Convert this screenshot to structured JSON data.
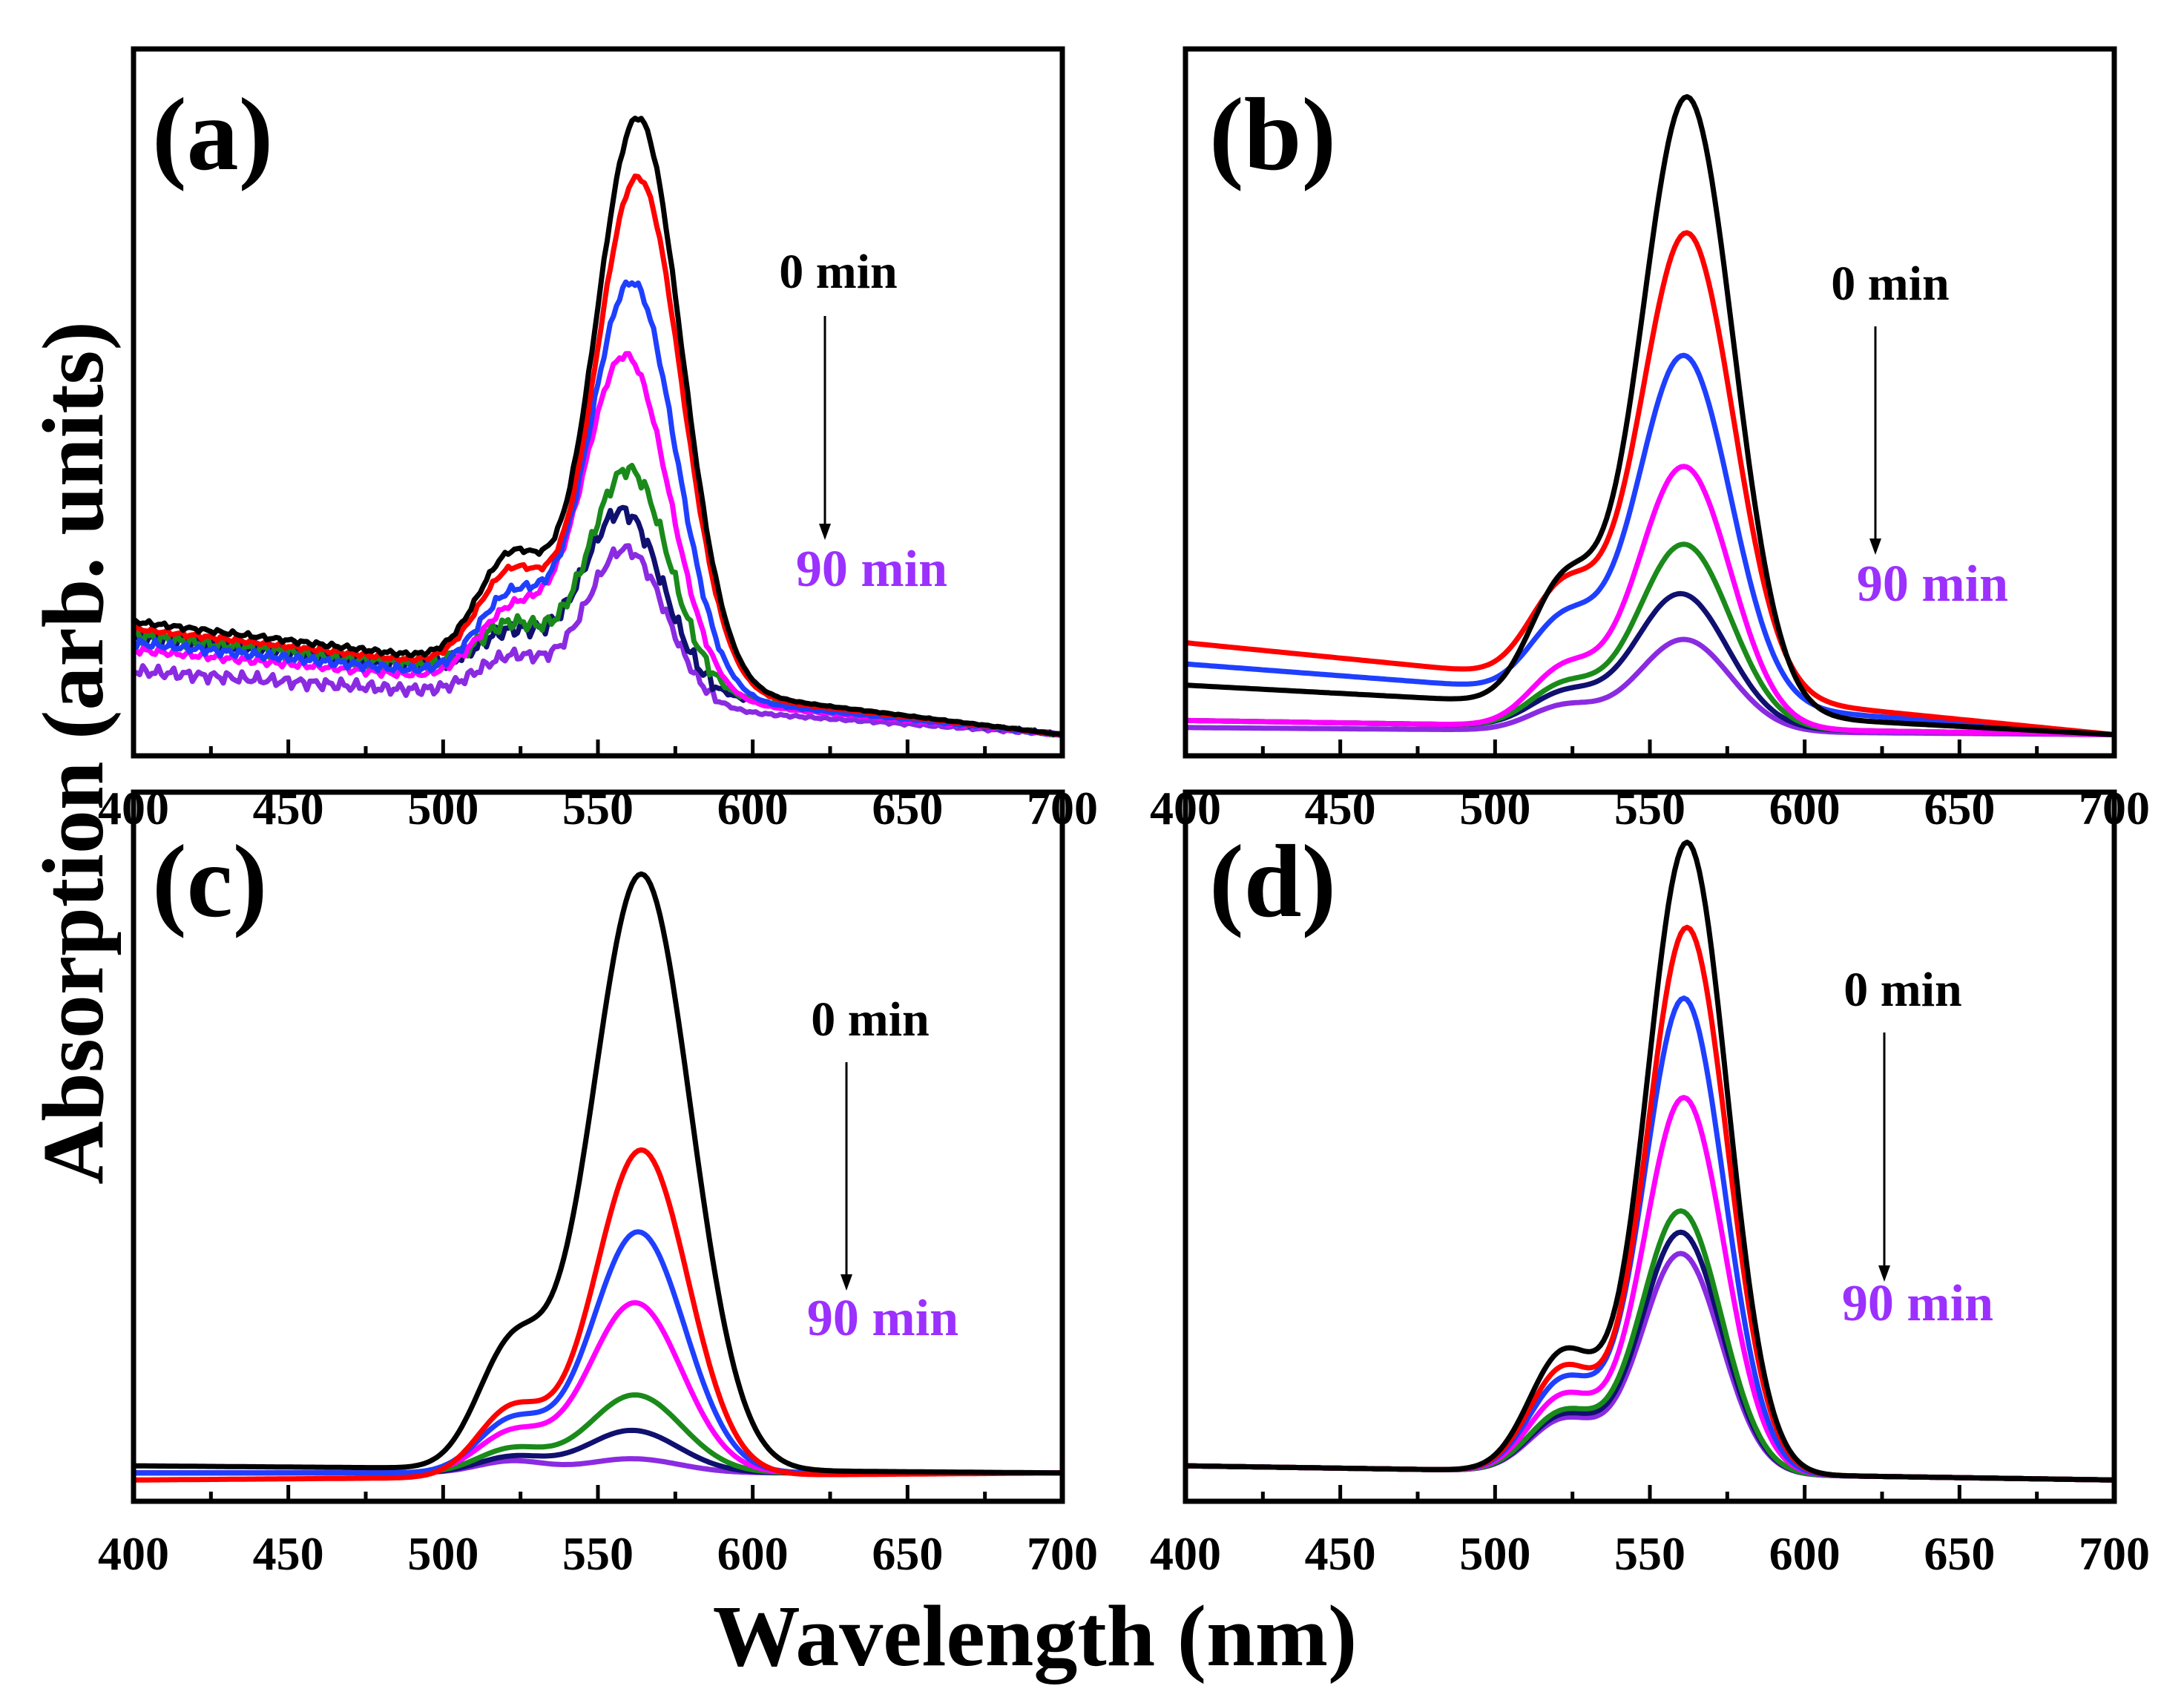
{
  "figure": {
    "ylabel": "Absorption (arb. units)",
    "xlabel": "Wavelength (nm)"
  },
  "chart_data": [
    {
      "type": "line",
      "panel": "(a)",
      "annotation_start": "0 min",
      "annotation_end": "90 min",
      "xlim": [
        400,
        700
      ],
      "ylim": [
        0,
        100
      ],
      "xticks": [
        400,
        450,
        500,
        550,
        600,
        650,
        700
      ],
      "xlabel": "Wavelength (nm)",
      "ylabel": "Absorption (arb. units)",
      "series": [
        {
          "color": "#000000",
          "peak": 83,
          "peak_x": 563,
          "width": 14,
          "shoulder": 28,
          "base_left": 19,
          "base_right": 3,
          "noise": 0.4
        },
        {
          "color": "#ff0000",
          "peak": 75,
          "peak_x": 563,
          "width": 14,
          "shoulder": 25,
          "base_left": 18,
          "base_right": 3,
          "noise": 0.4
        },
        {
          "color": "#1f3fff",
          "peak": 61,
          "peak_x": 561,
          "width": 14,
          "shoulder": 21,
          "base_left": 16,
          "base_right": 3,
          "noise": 0.7
        },
        {
          "color": "#ff00ff",
          "peak": 51,
          "peak_x": 559,
          "width": 14,
          "shoulder": 18,
          "base_left": 15,
          "base_right": 3,
          "noise": 0.6
        },
        {
          "color": "#1a8a1a",
          "peak": 34,
          "peak_x": 560,
          "width": 13,
          "shoulder": 13,
          "base_left": 17,
          "base_right": 3,
          "noise": 1.2
        },
        {
          "color": "#101070",
          "peak": 28,
          "peak_x": 558,
          "width": 13,
          "shoulder": 11,
          "base_left": 17,
          "base_right": 3,
          "noise": 1.3
        },
        {
          "color": "#8a2be2",
          "peak": 25,
          "peak_x": 559,
          "width": 13,
          "shoulder": 10,
          "base_left": 12,
          "base_right": 3,
          "noise": 1.0
        }
      ]
    },
    {
      "type": "line",
      "panel": "(b)",
      "annotation_start": "0 min",
      "annotation_end": "90 min",
      "xlim": [
        400,
        700
      ],
      "ylim": [
        0,
        100
      ],
      "xticks": [
        400,
        450,
        500,
        550,
        600,
        650,
        700
      ],
      "xlabel": "Wavelength (nm)",
      "ylabel": "Absorption (arb. units)",
      "series": [
        {
          "color": "#000000",
          "peak": 90,
          "peak_x": 562,
          "width": 15,
          "shoulder": 30,
          "base_left": 10,
          "base_right": 3,
          "noise": 0
        },
        {
          "color": "#ff0000",
          "peak": 68,
          "peak_x": 562,
          "width": 15,
          "shoulder": 23,
          "base_left": 16,
          "base_right": 3,
          "noise": 0
        },
        {
          "color": "#1f3fff",
          "peak": 52,
          "peak_x": 561,
          "width": 15,
          "shoulder": 18,
          "base_left": 13,
          "base_right": 3,
          "noise": 0
        },
        {
          "color": "#ff00ff",
          "peak": 40,
          "peak_x": 561,
          "width": 15,
          "shoulder": 14,
          "base_left": 5,
          "base_right": 3,
          "noise": 0
        },
        {
          "color": "#1a8a1a",
          "peak": 29,
          "peak_x": 561,
          "width": 15,
          "shoulder": 10,
          "base_left": 5,
          "base_right": 3,
          "noise": 0
        },
        {
          "color": "#101070",
          "peak": 22,
          "peak_x": 560,
          "width": 15,
          "shoulder": 8,
          "base_left": 5,
          "base_right": 3,
          "noise": 0
        },
        {
          "color": "#8a2be2",
          "peak": 16,
          "peak_x": 561,
          "width": 15,
          "shoulder": 6,
          "base_left": 4,
          "base_right": 3,
          "noise": 0
        }
      ]
    },
    {
      "type": "line",
      "panel": "(c)",
      "annotation_start": "0 min",
      "annotation_end": "90 min",
      "xlim": [
        400,
        700
      ],
      "ylim": [
        0,
        100
      ],
      "xticks": [
        400,
        450,
        500,
        550,
        600,
        650,
        700
      ],
      "xlabel": "Wavelength (nm)",
      "ylabel": "Absorption (arb. units)",
      "series": [
        {
          "color": "#000000",
          "peak": 88,
          "peak_x": 564,
          "width": 16,
          "shoulder": 30,
          "base_left": 5,
          "base_right": 4,
          "noise": 0
        },
        {
          "color": "#ff0000",
          "peak": 50,
          "peak_x": 564,
          "width": 15,
          "shoulder": 17,
          "base_left": 3,
          "base_right": 4,
          "noise": 0
        },
        {
          "color": "#1f3fff",
          "peak": 38,
          "peak_x": 563,
          "width": 15,
          "shoulder": 13,
          "base_left": 4,
          "base_right": 4,
          "noise": 0
        },
        {
          "color": "#ff00ff",
          "peak": 28,
          "peak_x": 562,
          "width": 15,
          "shoulder": 10,
          "base_left": 4,
          "base_right": 4,
          "noise": 0
        },
        {
          "color": "#1a8a1a",
          "peak": 15,
          "peak_x": 562,
          "width": 15,
          "shoulder": 6,
          "base_left": 4,
          "base_right": 4,
          "noise": 0
        },
        {
          "color": "#101070",
          "peak": 10,
          "peak_x": 561,
          "width": 15,
          "shoulder": 4,
          "base_left": 4,
          "base_right": 4,
          "noise": 0
        },
        {
          "color": "#8a2be2",
          "peak": 6,
          "peak_x": 561,
          "width": 15,
          "shoulder": 3,
          "base_left": 4,
          "base_right": 4,
          "noise": 0
        }
      ]
    },
    {
      "type": "line",
      "panel": "(d)",
      "annotation_start": "0 min",
      "annotation_end": "90 min",
      "xlim": [
        400,
        700
      ],
      "ylim": [
        0,
        100
      ],
      "xticks": [
        400,
        450,
        500,
        550,
        600,
        650,
        700
      ],
      "xlabel": "Wavelength (nm)",
      "ylabel": "Absorption (arb. units)",
      "series": [
        {
          "color": "#000000",
          "peak": 92,
          "peak_x": 562,
          "width": 13,
          "shoulder": 30,
          "base_left": 5,
          "base_right": 3,
          "noise": 0
        },
        {
          "color": "#ff0000",
          "peak": 80,
          "peak_x": 562,
          "width": 13,
          "shoulder": 26,
          "base_left": 5,
          "base_right": 3,
          "noise": 0
        },
        {
          "color": "#1f3fff",
          "peak": 70,
          "peak_x": 561,
          "width": 13,
          "shoulder": 23,
          "base_left": 5,
          "base_right": 3,
          "noise": 0
        },
        {
          "color": "#ff00ff",
          "peak": 56,
          "peak_x": 561,
          "width": 13,
          "shoulder": 19,
          "base_left": 5,
          "base_right": 3,
          "noise": 0
        },
        {
          "color": "#1a8a1a",
          "peak": 40,
          "peak_x": 560,
          "width": 13,
          "shoulder": 15,
          "base_left": 5,
          "base_right": 3,
          "noise": 0
        },
        {
          "color": "#101070",
          "peak": 37,
          "peak_x": 560,
          "width": 13,
          "shoulder": 14,
          "base_left": 5,
          "base_right": 3,
          "noise": 0
        },
        {
          "color": "#8a2be2",
          "peak": 34,
          "peak_x": 560,
          "width": 13,
          "shoulder": 13,
          "base_left": 5,
          "base_right": 3,
          "noise": 0
        }
      ]
    }
  ],
  "colors": {
    "axis": "#000000",
    "start_label": "#000000",
    "end_label": "#9b30ff"
  }
}
